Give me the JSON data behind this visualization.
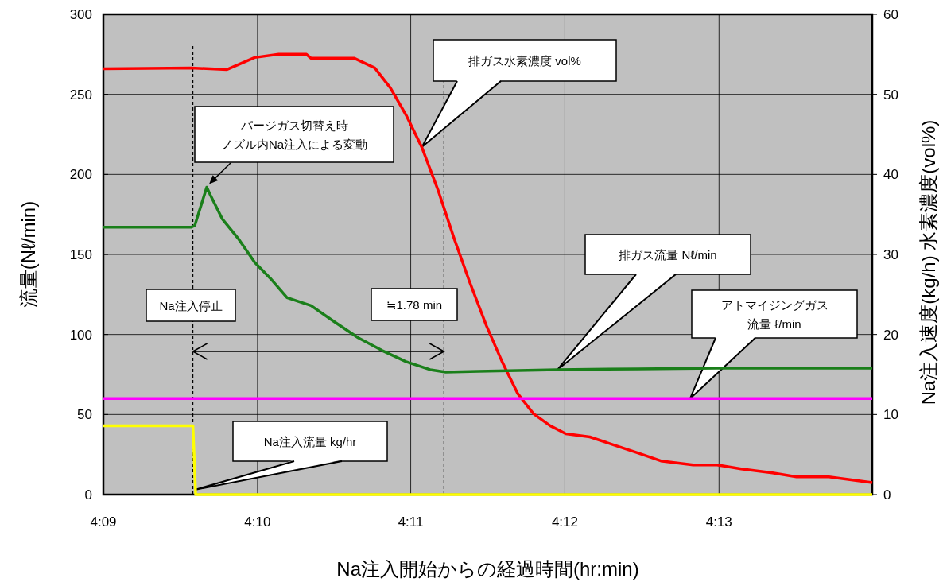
{
  "chart_data": {
    "type": "line",
    "xlabel": "Na注入開始からの経過時間(hr:min)",
    "ylabel": "流量(Nℓ/min)",
    "y2label": "Na注入速度(kg/h)  水素濃度(vol%)",
    "xlim": [
      4.15,
      4.2333
    ],
    "xticks": [
      {
        "value": 4.15,
        "label": "4:09"
      },
      {
        "value": 4.1667,
        "label": "4:10"
      },
      {
        "value": 4.1833,
        "label": "4:11"
      },
      {
        "value": 4.2,
        "label": "4:12"
      },
      {
        "value": 4.2167,
        "label": "4:13"
      }
    ],
    "ylim": [
      0,
      300
    ],
    "yticks": [
      0,
      50,
      100,
      150,
      200,
      250,
      300
    ],
    "y2lim": [
      0,
      60
    ],
    "y2ticks": [
      0,
      10,
      20,
      30,
      40,
      50,
      60
    ],
    "grid": true,
    "line_style": "solid",
    "series": [
      {
        "color": "#ff0000",
        "axis": "y2",
        "x": [
          4.15,
          4.1595,
          4.1634,
          4.1664,
          4.169,
          4.172,
          4.1725,
          4.1772,
          4.1794,
          4.1811,
          4.1828,
          4.1845,
          4.1863,
          4.188,
          4.1897,
          4.1915,
          4.1932,
          4.1949,
          4.1966,
          4.1984,
          4.2001,
          4.2027,
          4.2053,
          4.2079,
          4.2104,
          4.2139,
          4.2165,
          4.2191,
          4.2225,
          4.2251,
          4.2286,
          4.232,
          4.2333
        ],
        "values": [
          53.2,
          53.3,
          53.1,
          54.6,
          55.0,
          55.0,
          54.5,
          54.5,
          53.3,
          50.8,
          47.4,
          43.4,
          37.9,
          32.0,
          26.5,
          21.1,
          16.6,
          12.6,
          10.1,
          8.6,
          7.6,
          7.2,
          6.2,
          5.2,
          4.2,
          3.7,
          3.7,
          3.2,
          2.7,
          2.2,
          2.2,
          1.7,
          1.5
        ]
      },
      {
        "color": "#1a7f1a",
        "axis": "y",
        "x": [
          4.15,
          4.1595,
          4.1599,
          4.1612,
          4.1616,
          4.1629,
          4.1646,
          4.1664,
          4.1681,
          4.1699,
          4.1725,
          4.175,
          4.1776,
          4.1802,
          4.1828,
          4.1854,
          4.1871,
          4.1906,
          4.1992,
          4.2079,
          4.2165,
          4.2333
        ],
        "values": [
          167,
          167,
          168,
          192,
          187,
          172,
          160,
          145,
          135,
          123,
          118,
          108,
          98,
          90,
          83,
          78,
          76.5,
          77,
          78,
          78.5,
          79,
          79
        ]
      },
      {
        "color": "#ff00ff",
        "axis": "y",
        "x": [
          4.15,
          4.2333
        ],
        "values": [
          60,
          60
        ]
      },
      {
        "color": "#ffff00",
        "axis": "y2",
        "x": [
          4.15,
          4.1597,
          4.16,
          4.2333
        ],
        "values": [
          8.6,
          8.6,
          0,
          0
        ]
      }
    ],
    "ref_lines": [
      {
        "axis": "x",
        "value": 4.1597,
        "color": "#000000",
        "line_style": "dashed"
      },
      {
        "axis": "x",
        "value": 4.1869,
        "color": "#000000",
        "line_style": "dashed"
      }
    ],
    "annotations": [
      "パージガス切替え時ノズル内Na注入による変動",
      "Na注入停止",
      "≒1.78 min",
      "排ガス水素濃度  vol%",
      "排ガス流量  Nℓ/min",
      "アトマイジングガス流量  ℓ/min",
      {
        "text": "Na注入流量  kg/hr",
        "x": 4.1599,
        "y": 3
      }
    ]
  }
}
